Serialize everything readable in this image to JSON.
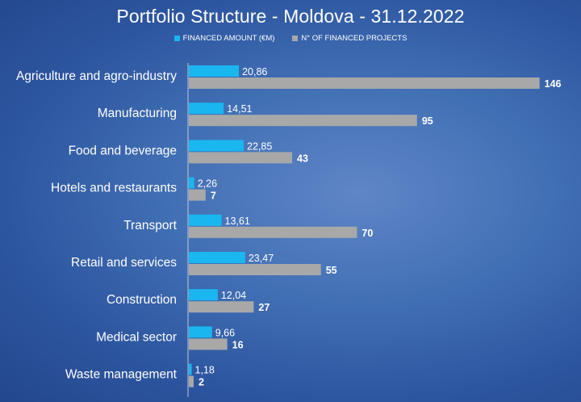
{
  "colors": {
    "financed_amount": "#1ab6f0",
    "financed_projects": "#a8a8a8",
    "axis": "#bfc8d8",
    "text": "#ffffff"
  },
  "legend": {
    "financed_amount": "FINANCED AMOUNT (€M)",
    "financed_projects": "N° OF FINANCED PROJECTS"
  },
  "chart_data": {
    "type": "bar",
    "orientation": "horizontal",
    "title": "Portfolio Structure - Moldova - 31.12.2022",
    "categories": [
      "Agriculture and agro-industry",
      "Manufacturing",
      "Food and beverage",
      "Hotels and restaurants",
      "Transport",
      "Retail and services",
      "Construction",
      "Medical sector",
      "Waste management"
    ],
    "series": [
      {
        "name": "FINANCED AMOUNT (€M)",
        "values": [
          20.86,
          14.51,
          22.85,
          2.26,
          13.61,
          23.47,
          12.04,
          9.66,
          1.18
        ],
        "labels": [
          "20,86",
          "14,51",
          "22,85",
          "2,26",
          "13,61",
          "23,47",
          "12,04",
          "9,66",
          "1,18"
        ],
        "color": "#1ab6f0"
      },
      {
        "name": "N° OF FINANCED PROJECTS",
        "values": [
          146,
          95,
          43,
          7,
          70,
          55,
          27,
          16,
          2
        ],
        "labels": [
          "146",
          "95",
          "43",
          "7",
          "70",
          "55",
          "27",
          "16",
          "2"
        ],
        "color": "#a8a8a8"
      }
    ],
    "xlim": [
      0,
      150
    ],
    "grid": false,
    "legend_position": "top"
  }
}
